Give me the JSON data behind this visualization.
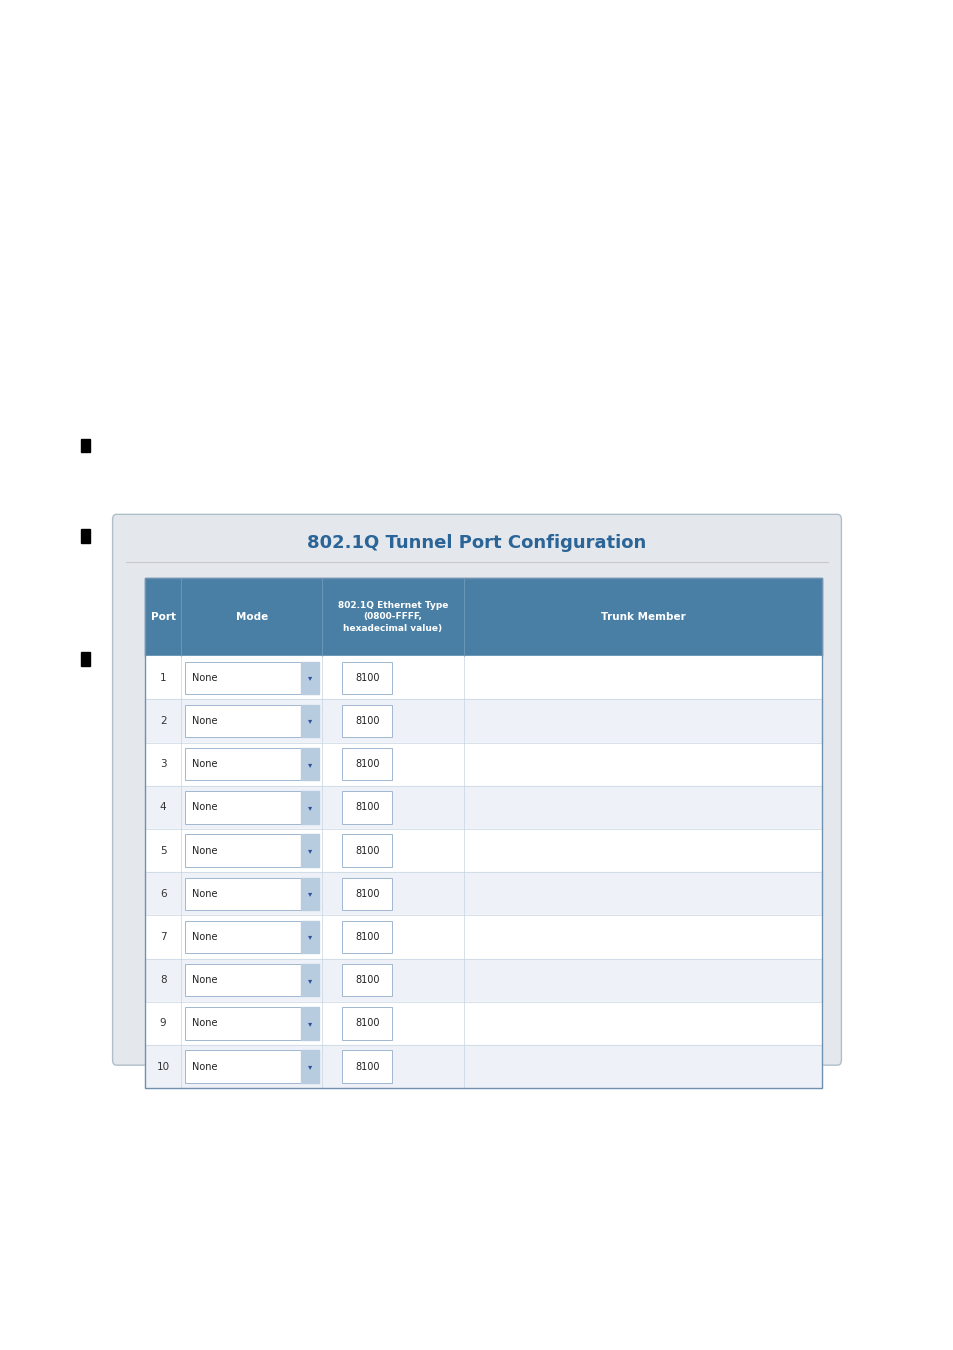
{
  "title": "802.1Q Tunnel Port Configuration",
  "title_color": "#2B6496",
  "header_bg": "#4A7FA5",
  "header_text_color": "#FFFFFF",
  "col_headers": [
    "Port",
    "Mode",
    "802.1Q Ethernet Type\n(0800-FFFF,\nhexadecimal value)",
    "Trunk Member"
  ],
  "num_rows": 10,
  "mode_value": "None",
  "eth_type_value": "8100",
  "page_bg": "#FFFFFF",
  "input_bg": "#FFFFFF",
  "input_border": "#A0B8D0",
  "bullet_color": "#000000",
  "outer_border": "#B0BEC8",
  "divider_color": "#C8C8C8",
  "panel_bg": "#E4E8EC",
  "row_bg_odd": "#FFFFFF",
  "row_bg_even": "#EEF2F8",
  "header_divider": "#6A96B8",
  "table_border": "#7090B0"
}
